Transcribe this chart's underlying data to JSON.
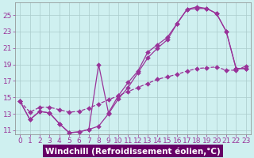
{
  "xlabel": "Windchill (Refroidissement éolien,°C)",
  "bg_color": "#cff0f0",
  "line_color": "#993399",
  "grid_color": "#aacccc",
  "xlim": [
    -0.5,
    23.5
  ],
  "ylim": [
    10.5,
    26.5
  ],
  "xticks": [
    0,
    1,
    2,
    3,
    4,
    5,
    6,
    7,
    8,
    9,
    10,
    11,
    12,
    13,
    14,
    15,
    16,
    17,
    18,
    19,
    20,
    21,
    22,
    23
  ],
  "yticks": [
    11,
    13,
    15,
    17,
    19,
    21,
    23,
    25
  ],
  "line1_x": [
    0,
    1,
    2,
    3,
    4,
    5,
    6,
    7,
    8,
    9,
    10,
    11,
    12,
    13,
    14,
    15,
    16,
    17,
    18,
    19,
    20,
    21,
    22,
    23
  ],
  "line1_y": [
    14.5,
    12.3,
    13.3,
    13.1,
    11.8,
    10.7,
    10.8,
    11.1,
    19.0,
    13.1,
    15.2,
    16.8,
    18.2,
    20.5,
    21.4,
    22.3,
    24.0,
    25.7,
    26.0,
    25.8,
    25.2,
    23.0,
    18.5,
    18.5
  ],
  "line2_x": [
    0,
    1,
    2,
    3,
    4,
    5,
    6,
    7,
    8,
    9,
    10,
    11,
    12,
    13,
    14,
    15,
    16,
    17,
    18,
    19,
    20,
    21,
    22,
    23
  ],
  "line2_y": [
    14.5,
    12.3,
    13.3,
    13.1,
    11.8,
    10.7,
    10.8,
    11.1,
    11.5,
    13.0,
    14.8,
    16.2,
    18.0,
    19.8,
    21.0,
    22.0,
    24.0,
    25.7,
    25.8,
    25.8,
    25.2,
    23.0,
    18.5,
    18.5
  ],
  "line3_x": [
    0,
    1,
    2,
    3,
    4,
    5,
    6,
    7,
    8,
    9,
    10,
    11,
    12,
    13,
    14,
    15,
    16,
    17,
    18,
    19,
    20,
    21,
    22,
    23
  ],
  "line3_y": [
    14.5,
    13.2,
    13.8,
    13.8,
    13.5,
    13.2,
    13.3,
    13.7,
    14.2,
    14.7,
    15.2,
    15.7,
    16.2,
    16.7,
    17.2,
    17.5,
    17.8,
    18.2,
    18.5,
    18.6,
    18.7,
    18.3,
    18.3,
    18.8
  ],
  "markersize": 3,
  "linewidth": 0.9,
  "xlabel_fontsize": 7.5,
  "tick_fontsize": 6.5,
  "xlabel_bg": "#660066",
  "xlabel_fg": "#ffffff"
}
